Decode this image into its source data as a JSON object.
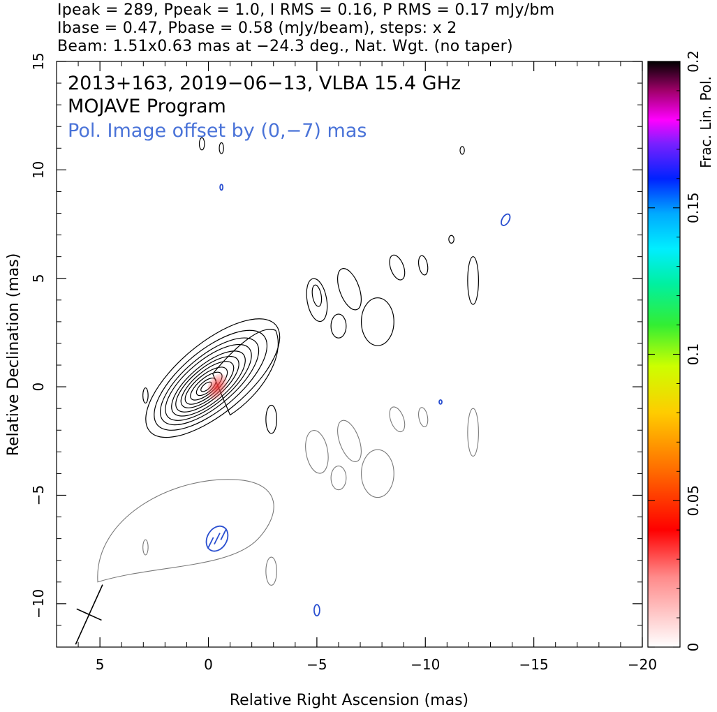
{
  "header": {
    "line1": "Ipeak = 289, Ppeak = 1.0, I RMS = 0.16, P RMS = 0.17 mJy/bm",
    "line2": "Ibase = 0.47, Pbase = 0.58 (mJy/beam), steps: x 2",
    "line3": "Beam: 1.51x0.63 mas at −24.3 deg., Nat. Wgt. (no taper)"
  },
  "chart_data": {
    "type": "contour",
    "annotations": {
      "line1": "2013+163, 2019−06−13, VLBA 15.4 GHz",
      "line2": "MOJAVE Program",
      "line3": "Pol. Image offset by (0,−7) mas"
    },
    "xlabel": "Relative Right Ascension (mas)",
    "ylabel": "Relative Declination (mas)",
    "xlim": [
      7,
      -20
    ],
    "ylim": [
      -12,
      15
    ],
    "xticks": [
      5,
      0,
      -5,
      -10,
      -15,
      -20
    ],
    "xtick_labels": [
      "5",
      "0",
      "−5",
      "−10",
      "−15",
      "−20"
    ],
    "yticks": [
      -10,
      -5,
      0,
      5,
      10,
      15
    ],
    "ytick_labels": [
      "−10",
      "−5",
      "0",
      "5",
      "10",
      "15"
    ],
    "colorbar": {
      "label": "Frac. Lin. Pol.",
      "range": [
        0,
        0.2
      ],
      "ticks": [
        0,
        0.05,
        0.1,
        0.15,
        0.2
      ],
      "tick_labels": [
        "0",
        "0.05",
        "0.1",
        "0.15",
        "0.2"
      ]
    },
    "core": {
      "ra": 0,
      "dec": 0,
      "peak_mJy_per_beam": 289
    },
    "beam": {
      "major_mas": 1.51,
      "minor_mas": 0.63,
      "pa_deg": -24.3
    },
    "pol_offset_mas": [
      0,
      -7
    ],
    "colors": {
      "total_intensity": "#000000",
      "polarization": "#7a7a7a",
      "evpa": "#2a4fd0",
      "annotation_pol": "#4a73d8",
      "core_pol": "#e53030"
    }
  }
}
